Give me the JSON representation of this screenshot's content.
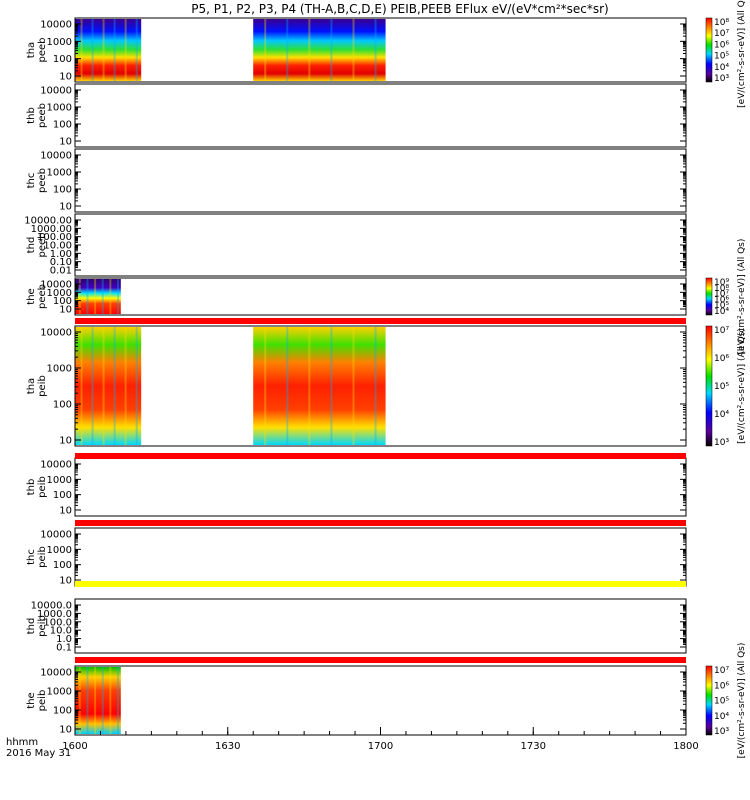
{
  "title": "P5, P1, P2, P3, P4 (TH-A,B,C,D,E) PEIB,PEEB EFlux eV/(eV*cm²*sec*sr)",
  "time_axis": {
    "ticks": [
      "1600",
      "1630",
      "1700",
      "1730",
      "1800"
    ],
    "corner_label": "hhmm",
    "date": "2016 May 31"
  },
  "colorbar_unit": "[eV/(cm²-s-sr-eV)]",
  "colorbar_unit_allqs": "[eV/(cm²-s-sr-eV)] (All Qs)",
  "chart_data": [
    {
      "type": "heatmap",
      "probe": "tha",
      "product": "peeb",
      "label": "tha\npeeb",
      "ylog": true,
      "yticks": [
        "10",
        "100",
        "1000",
        "10000"
      ],
      "data_time_spans": [
        [
          "1600",
          "1613"
        ],
        [
          "1635",
          "1701"
        ]
      ],
      "colorbar": {
        "labels": [
          "10³",
          "10⁴",
          "10⁵",
          "10⁶",
          "10⁷",
          "10⁸"
        ],
        "unit": "[eV/(cm²-s-sr-eV)] (All Qs)"
      }
    },
    {
      "type": "heatmap",
      "probe": "thb",
      "product": "peeb",
      "label": "thb\npeeb",
      "ylog": true,
      "yticks": [
        "10",
        "100",
        "1000",
        "10000"
      ],
      "data_time_spans": []
    },
    {
      "type": "heatmap",
      "probe": "thc",
      "product": "peeb",
      "label": "thc\npeeb",
      "ylog": true,
      "yticks": [
        "10",
        "100",
        "1000",
        "10000"
      ],
      "data_time_spans": []
    },
    {
      "type": "heatmap",
      "probe": "thd",
      "product": "peeb",
      "label": "thd\npeeb",
      "ylog": true,
      "yticks": [
        "0.01",
        "0.10",
        "1.00",
        "10.00",
        "100.00",
        "1000.00",
        "10000.00"
      ],
      "data_time_spans": []
    },
    {
      "type": "heatmap",
      "probe": "the",
      "product": "peeb",
      "label": "the\npeeb",
      "ylog": true,
      "yticks": [
        "10",
        "100",
        "1000",
        "10000"
      ],
      "data_time_spans": [
        [
          "1600",
          "1609"
        ]
      ],
      "colorbar": {
        "labels": [
          "10⁴",
          "10⁵",
          "10⁶",
          "10⁷",
          "10⁸",
          "10⁹"
        ],
        "unit": "[eV/(cm²-s-sr-eV)] (All Qs)"
      }
    },
    {
      "type": "heatmap",
      "probe": "tha",
      "product": "peib",
      "label": "tha\npeib",
      "ylog": true,
      "yticks": [
        "10",
        "100",
        "1000",
        "10000"
      ],
      "data_time_spans": [
        [
          "1600",
          "1613"
        ],
        [
          "1635",
          "1701"
        ]
      ],
      "colorbar": {
        "labels": [
          "10³",
          "10⁴",
          "10⁵",
          "10⁶",
          "10⁷"
        ],
        "unit": "[eV/(cm²-s-sr-eV)] (All Qs)"
      }
    },
    {
      "type": "heatmap",
      "probe": "thb",
      "product": "peib",
      "label": "thb\npeib",
      "ylog": true,
      "yticks": [
        "10",
        "100",
        "1000",
        "10000"
      ],
      "data_time_spans": []
    },
    {
      "type": "heatmap",
      "probe": "thc",
      "product": "peib",
      "label": "thc\npeib",
      "ylog": true,
      "yticks": [
        "10",
        "100",
        "1000",
        "10000"
      ],
      "data_time_spans": []
    },
    {
      "type": "heatmap",
      "probe": "thd",
      "product": "peib",
      "label": "thd\npeib",
      "ylog": true,
      "yticks": [
        "0.1",
        "1.0",
        "10.0",
        "100.0",
        "1000.0",
        "10000.0"
      ],
      "data_time_spans": []
    },
    {
      "type": "heatmap",
      "probe": "the",
      "product": "peib",
      "label": "the\npeib",
      "ylog": true,
      "yticks": [
        "10",
        "100",
        "1000",
        "10000"
      ],
      "data_time_spans": [
        [
          "1600",
          "1609"
        ]
      ],
      "colorbar": {
        "labels": [
          "10³",
          "10⁴",
          "10⁵",
          "10⁶",
          "10⁷"
        ],
        "unit": "[eV/(cm²-s-sr-eV)] (All Qs)"
      }
    }
  ],
  "separator_bars": [
    {
      "after_panel": 5,
      "color": "#ff0000"
    },
    {
      "after_panel": 6,
      "color": "#ff0000"
    },
    {
      "after_panel": 7,
      "color": "#ff0000"
    },
    {
      "after_panel": 8,
      "color": "#ffff00"
    },
    {
      "after_panel": 9,
      "color": "#ff0000"
    }
  ]
}
